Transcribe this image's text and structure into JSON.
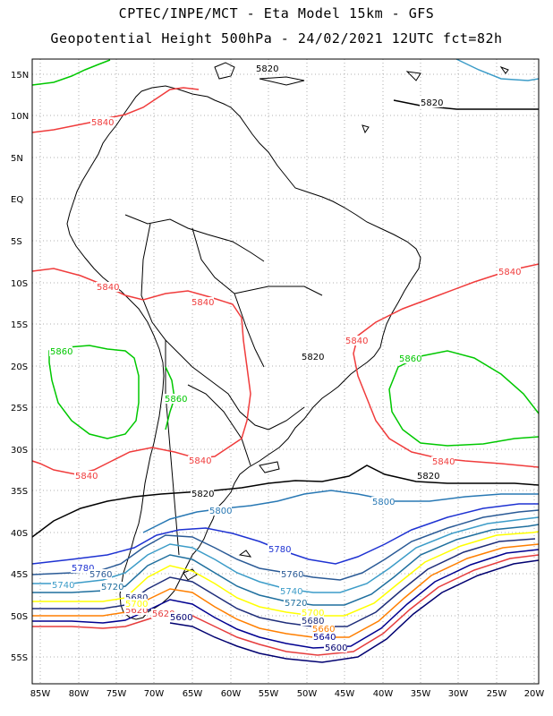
{
  "header": {
    "line1": "CPTEC/INPE/MCT -  Eta Model 15km - GFS",
    "line2": "Geopotential Height 500hPa - 24/02/2021 12UTC fct=82h"
  },
  "axes": {
    "lat_labels": [
      "15N",
      "10N",
      "5N",
      "EQ",
      "5S",
      "10S",
      "15S",
      "20S",
      "25S",
      "30S",
      "35S",
      "40S",
      "45S",
      "50S",
      "55S"
    ],
    "lon_labels": [
      "85W",
      "80W",
      "75W",
      "70W",
      "65W",
      "60W",
      "55W",
      "50W",
      "45W",
      "40W",
      "35W",
      "30W",
      "25W",
      "20W"
    ]
  },
  "colors": {
    "c5580": "#ff0000",
    "c5600": "#000070",
    "c5620": "#e63c3c",
    "c5640": "#000090",
    "c5660": "#ff7f00",
    "c5680": "#1f2e7a",
    "c5700": "#ffff00",
    "c5720": "#1f6f9e",
    "c5740": "#3c9cc8",
    "c5760": "#2a5a96",
    "c5780": "#1e32d2",
    "c5800": "#2878b4",
    "c5820": "#000000",
    "c5840": "#f03c3c",
    "c5860": "#00c800",
    "coast": "#000000",
    "grid": "#999999"
  },
  "contour_labels": [
    {
      "text": "5820",
      "color": "c5820"
    },
    {
      "text": "5820",
      "color": "c5820"
    },
    {
      "text": "5840",
      "color": "c5840"
    },
    {
      "text": "5840",
      "color": "c5840"
    },
    {
      "text": "5840",
      "color": "c5840"
    },
    {
      "text": "5840",
      "color": "c5840"
    },
    {
      "text": "5840",
      "color": "c5840"
    },
    {
      "text": "5860",
      "color": "c5860"
    },
    {
      "text": "5820",
      "color": "c5820"
    },
    {
      "text": "5860",
      "color": "c5860"
    },
    {
      "text": "5860",
      "color": "c5860"
    },
    {
      "text": "5840",
      "color": "c5840"
    },
    {
      "text": "5840",
      "color": "c5840"
    },
    {
      "text": "5840",
      "color": "c5840"
    },
    {
      "text": "5820",
      "color": "c5820"
    },
    {
      "text": "5820",
      "color": "c5820"
    },
    {
      "text": "5800",
      "color": "c5800"
    },
    {
      "text": "5800",
      "color": "c5800"
    },
    {
      "text": "5780",
      "color": "c5780"
    },
    {
      "text": "5780",
      "color": "c5780"
    },
    {
      "text": "5760",
      "color": "c5760"
    },
    {
      "text": "5760",
      "color": "c5760"
    },
    {
      "text": "5740",
      "color": "c5740"
    },
    {
      "text": "5740",
      "color": "c5740"
    },
    {
      "text": "5720",
      "color": "c5720"
    },
    {
      "text": "5720",
      "color": "c5720"
    },
    {
      "text": "5700",
      "color": "c5700"
    },
    {
      "text": "5680",
      "color": "c5680"
    },
    {
      "text": "5660",
      "color": "c5660"
    },
    {
      "text": "5640",
      "color": "c5640"
    },
    {
      "text": "5620",
      "color": "c5620"
    },
    {
      "text": "5600",
      "color": "c5600"
    },
    {
      "text": "5620",
      "color": "c5620"
    },
    {
      "text": "5600",
      "color": "c5600"
    },
    {
      "text": "5680",
      "color": "c5680"
    },
    {
      "text": "5700",
      "color": "c5700"
    }
  ]
}
